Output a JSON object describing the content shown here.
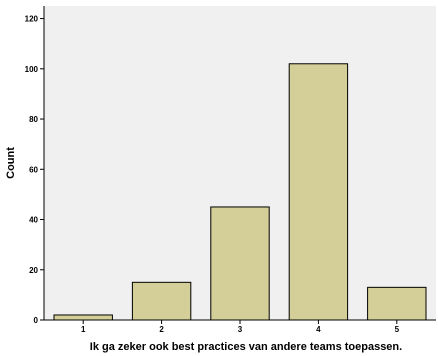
{
  "chart_data": {
    "type": "bar",
    "categories": [
      "1",
      "2",
      "3",
      "4",
      "5"
    ],
    "values": [
      2,
      15,
      45,
      102,
      13
    ],
    "title": "",
    "xlabel": "Ik ga zeker ook best practices van andere teams toepassen.",
    "ylabel": "Count",
    "ylim": [
      0,
      125
    ],
    "yticks": [
      0,
      20,
      40,
      60,
      80,
      100,
      120
    ],
    "grid": false,
    "colors": {
      "plot_background": "#f0f0f0",
      "bar_fill": "#d4cf98",
      "bar_stroke": "#000000",
      "axis": "#000000"
    }
  }
}
